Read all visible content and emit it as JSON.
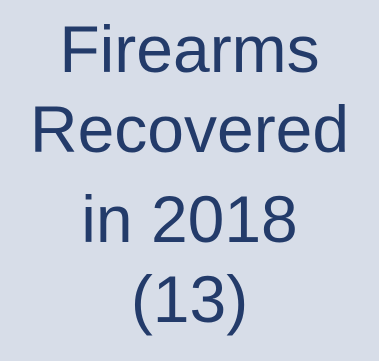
{
  "tile": {
    "line1": "Firearms",
    "line2": "Recovered",
    "line3": "in 2018",
    "line4": "(13)"
  },
  "colors": {
    "background": "#d7dde8",
    "text": "#233b6a"
  }
}
